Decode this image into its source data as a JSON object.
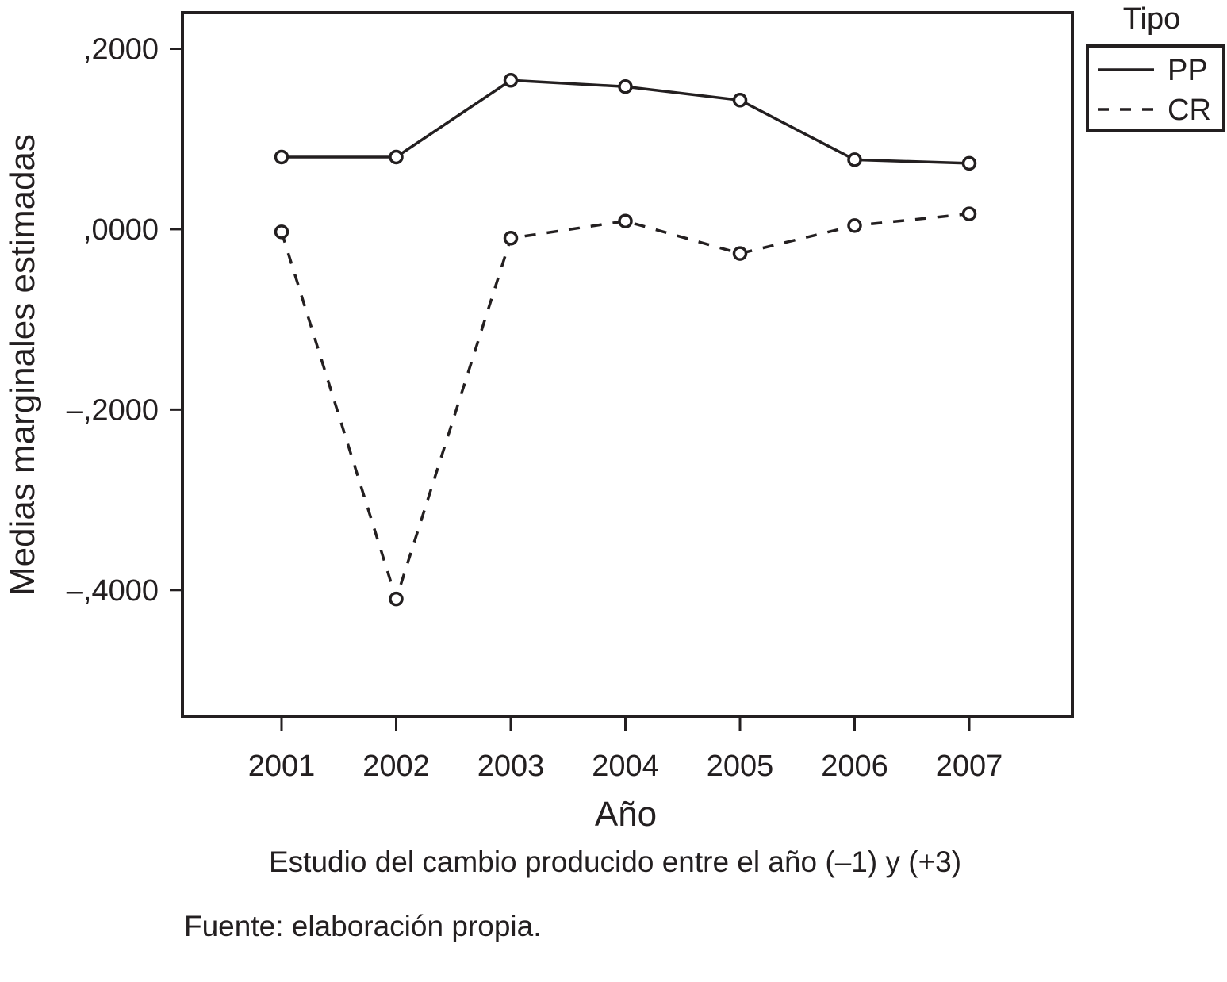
{
  "chart_data": {
    "type": "line",
    "xlabel": "Año",
    "ylabel": "Medias marginales estimadas",
    "categories": [
      "2001",
      "2002",
      "2003",
      "2004",
      "2005",
      "2006",
      "2007"
    ],
    "ylim": [
      -0.54,
      0.24
    ],
    "yticks": [
      0.2,
      0.0,
      -0.2,
      -0.4
    ],
    "ytick_labels": [
      ",2000",
      ",0000",
      "–,2000",
      "–,4000"
    ],
    "grid": false,
    "legend": {
      "title": "Tipo",
      "position": "top-right outside"
    },
    "series": [
      {
        "name": "PP",
        "line_style": "solid",
        "values": [
          0.08,
          0.08,
          0.165,
          0.158,
          0.143,
          0.077,
          0.073
        ]
      },
      {
        "name": "CR",
        "line_style": "dashed",
        "values": [
          -0.003,
          -0.41,
          -0.01,
          0.009,
          -0.027,
          0.004,
          0.017
        ]
      }
    ]
  },
  "notes": {
    "subtitle": "Estudio del cambio producido entre el año (–1) y (+3)",
    "source": "Fuente: elaboración propia."
  },
  "colors": {
    "ink": "#231f20",
    "background": "#ffffff"
  }
}
